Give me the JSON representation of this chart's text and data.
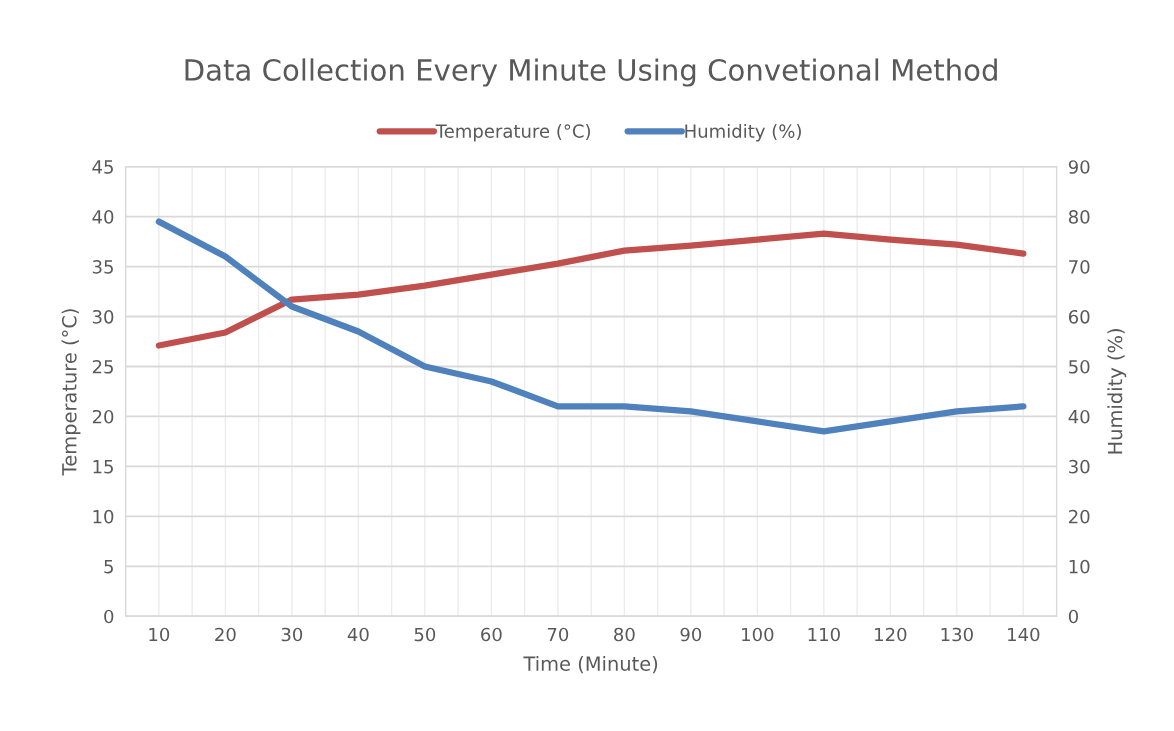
{
  "chart_data": {
    "type": "line",
    "title": "Data Collection Every Minute Using Convetional Method",
    "xlabel": "Time (Minute)",
    "ylabel": "Temperature (°C)",
    "y2label": "Humidity (%)",
    "categories": [
      "10",
      "20",
      "30",
      "40",
      "50",
      "60",
      "70",
      "80",
      "90",
      "100",
      "110",
      "120",
      "130",
      "140"
    ],
    "series": [
      {
        "name": "Temperature (°C)",
        "color": "#c0504d",
        "values": [
          27.1,
          28.4,
          31.7,
          32.2,
          33.1,
          34.2,
          35.3,
          36.6,
          37.1,
          37.7,
          38.3,
          37.7,
          37.2,
          36.3
        ]
      },
      {
        "name": "Humidity (%)",
        "color": "#4f81bd",
        "axis": "y2",
        "values": [
          79,
          72,
          62,
          57,
          50,
          47,
          42,
          42,
          41,
          39,
          37,
          39,
          41,
          42
        ]
      }
    ],
    "ylim": [
      0,
      45
    ],
    "yticks": [
      0,
      5,
      10,
      15,
      20,
      25,
      30,
      35,
      40,
      45
    ],
    "y2lim": [
      0,
      90
    ],
    "y2ticks": [
      0,
      10,
      20,
      30,
      40,
      50,
      60,
      70,
      80,
      90
    ],
    "grid": true,
    "legend": "top",
    "marker": "none",
    "line_style": "solid"
  }
}
